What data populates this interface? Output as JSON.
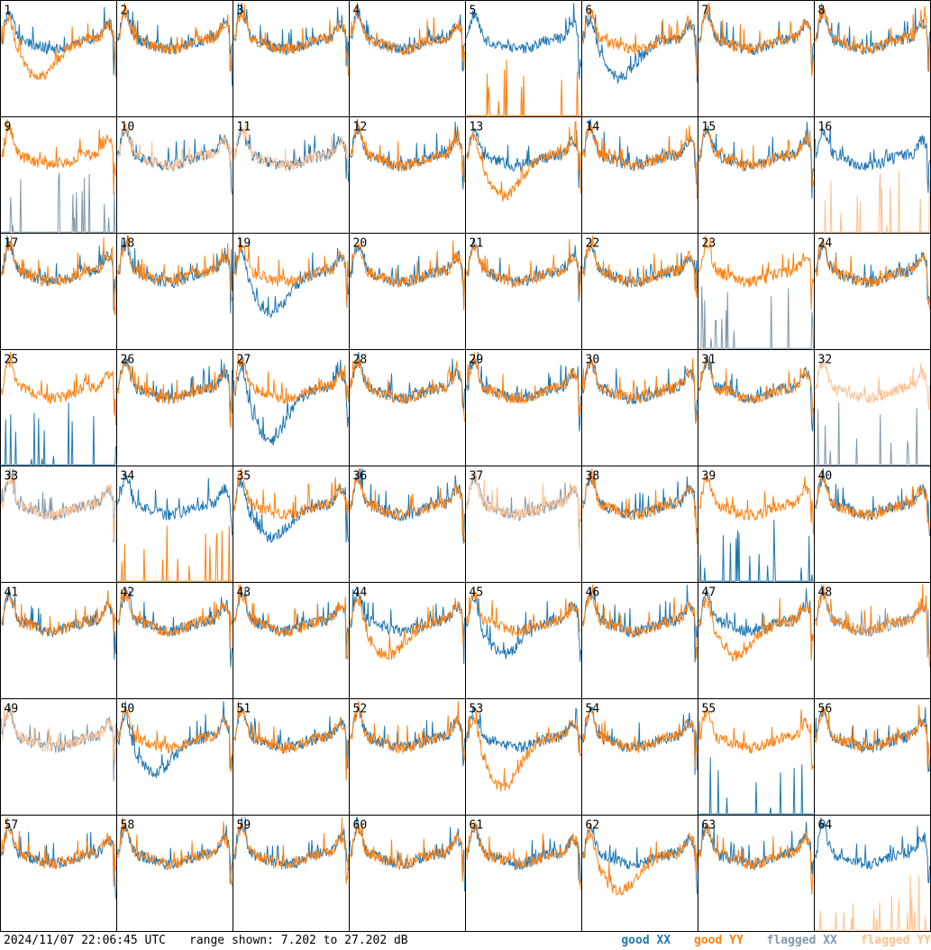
{
  "footer": {
    "timestamp": "2024/11/07 22:06:45 UTC",
    "range_text": "range shown: 7.202 to 27.202 dB"
  },
  "legend": [
    {
      "label": "good XX",
      "color": "#1f77b4"
    },
    {
      "label": "good YY",
      "color": "#ff7f0e"
    },
    {
      "label": "flagged XX",
      "color": "#7f98ae"
    },
    {
      "label": "flagged YY",
      "color": "#ffc08f"
    }
  ],
  "chart_data": {
    "type": "line",
    "ylim": [
      7.202,
      27.202
    ],
    "yunit": "dB",
    "rows": 8,
    "cols": 8,
    "panels": [
      {
        "id": "1",
        "xx": "good",
        "yy": "good",
        "yy_dip": 0.55
      },
      {
        "id": "2",
        "xx": "good",
        "yy": "good"
      },
      {
        "id": "3",
        "xx": "good",
        "yy": "good"
      },
      {
        "id": "4",
        "xx": "good",
        "yy": "good"
      },
      {
        "id": "5",
        "xx": "good",
        "yy": "spikes"
      },
      {
        "id": "6",
        "xx": "good",
        "yy": "good",
        "xx_dip": 0.55
      },
      {
        "id": "7",
        "xx": "good",
        "yy": "good"
      },
      {
        "id": "8",
        "xx": "good",
        "yy": "good"
      },
      {
        "id": "9",
        "xx": "flagged_spikes",
        "yy": "good"
      },
      {
        "id": "10",
        "xx": "good",
        "yy": "flagged"
      },
      {
        "id": "11",
        "xx": "good",
        "yy": "flagged"
      },
      {
        "id": "12",
        "xx": "good",
        "yy": "good"
      },
      {
        "id": "13",
        "xx": "good",
        "yy": "good",
        "yy_dip": 0.6
      },
      {
        "id": "14",
        "xx": "good",
        "yy": "good"
      },
      {
        "id": "15",
        "xx": "good",
        "yy": "good"
      },
      {
        "id": "16",
        "xx": "good",
        "yy": "flagged_spikes"
      },
      {
        "id": "17",
        "xx": "good",
        "yy": "good"
      },
      {
        "id": "18",
        "xx": "good",
        "yy": "good"
      },
      {
        "id": "19",
        "xx": "good",
        "yy": "good",
        "xx_dip": 0.6
      },
      {
        "id": "20",
        "xx": "good",
        "yy": "good"
      },
      {
        "id": "21",
        "xx": "good",
        "yy": "good"
      },
      {
        "id": "22",
        "xx": "good",
        "yy": "good"
      },
      {
        "id": "23",
        "xx": "flagged_spikes",
        "yy": "good"
      },
      {
        "id": "24",
        "xx": "good",
        "yy": "good"
      },
      {
        "id": "25",
        "xx": "spikes",
        "yy": "good"
      },
      {
        "id": "26",
        "xx": "good",
        "yy": "good"
      },
      {
        "id": "27",
        "xx": "good",
        "yy": "good",
        "xx_dip": 0.8
      },
      {
        "id": "28",
        "xx": "good",
        "yy": "good"
      },
      {
        "id": "29",
        "xx": "good",
        "yy": "good"
      },
      {
        "id": "30",
        "xx": "good",
        "yy": "good"
      },
      {
        "id": "31",
        "xx": "good",
        "yy": "good"
      },
      {
        "id": "32",
        "xx": "flagged_spikes",
        "yy": "flagged"
      },
      {
        "id": "33",
        "xx": "flagged",
        "yy": "flagged"
      },
      {
        "id": "34",
        "xx": "good",
        "yy": "spikes"
      },
      {
        "id": "35",
        "xx": "good",
        "yy": "good",
        "xx_dip": 0.45
      },
      {
        "id": "36",
        "xx": "good",
        "yy": "good"
      },
      {
        "id": "37",
        "xx": "flagged",
        "yy": "flagged"
      },
      {
        "id": "38",
        "xx": "good",
        "yy": "good"
      },
      {
        "id": "39",
        "xx": "spikes",
        "yy": "good"
      },
      {
        "id": "40",
        "xx": "good",
        "yy": "good"
      },
      {
        "id": "41",
        "xx": "good",
        "yy": "good"
      },
      {
        "id": "42",
        "xx": "good",
        "yy": "good"
      },
      {
        "id": "43",
        "xx": "good",
        "yy": "good"
      },
      {
        "id": "44",
        "xx": "good",
        "yy": "good",
        "yy_dip": 0.5
      },
      {
        "id": "45",
        "xx": "good",
        "yy": "good",
        "xx_dip": 0.45
      },
      {
        "id": "46",
        "xx": "good",
        "yy": "good"
      },
      {
        "id": "47",
        "xx": "good",
        "yy": "good",
        "yy_dip": 0.5
      },
      {
        "id": "48",
        "xx": "flagged",
        "yy": "good"
      },
      {
        "id": "49",
        "xx": "flagged",
        "yy": "flagged"
      },
      {
        "id": "50",
        "xx": "good",
        "yy": "good",
        "xx_dip": 0.5
      },
      {
        "id": "51",
        "xx": "good",
        "yy": "good"
      },
      {
        "id": "52",
        "xx": "good",
        "yy": "good"
      },
      {
        "id": "53",
        "xx": "good",
        "yy": "good",
        "yy_dip": 0.75
      },
      {
        "id": "54",
        "xx": "good",
        "yy": "good"
      },
      {
        "id": "55",
        "xx": "spikes",
        "yy": "good"
      },
      {
        "id": "56",
        "xx": "good",
        "yy": "good"
      },
      {
        "id": "57",
        "xx": "good",
        "yy": "good"
      },
      {
        "id": "58",
        "xx": "good",
        "yy": "good"
      },
      {
        "id": "59",
        "xx": "good",
        "yy": "good"
      },
      {
        "id": "60",
        "xx": "good",
        "yy": "good"
      },
      {
        "id": "61",
        "xx": "good",
        "yy": "good"
      },
      {
        "id": "62",
        "xx": "good",
        "yy": "good",
        "yy_dip": 0.55
      },
      {
        "id": "63",
        "xx": "good",
        "yy": "good"
      },
      {
        "id": "64",
        "xx": "good",
        "yy": "flagged_spikes"
      }
    ]
  }
}
